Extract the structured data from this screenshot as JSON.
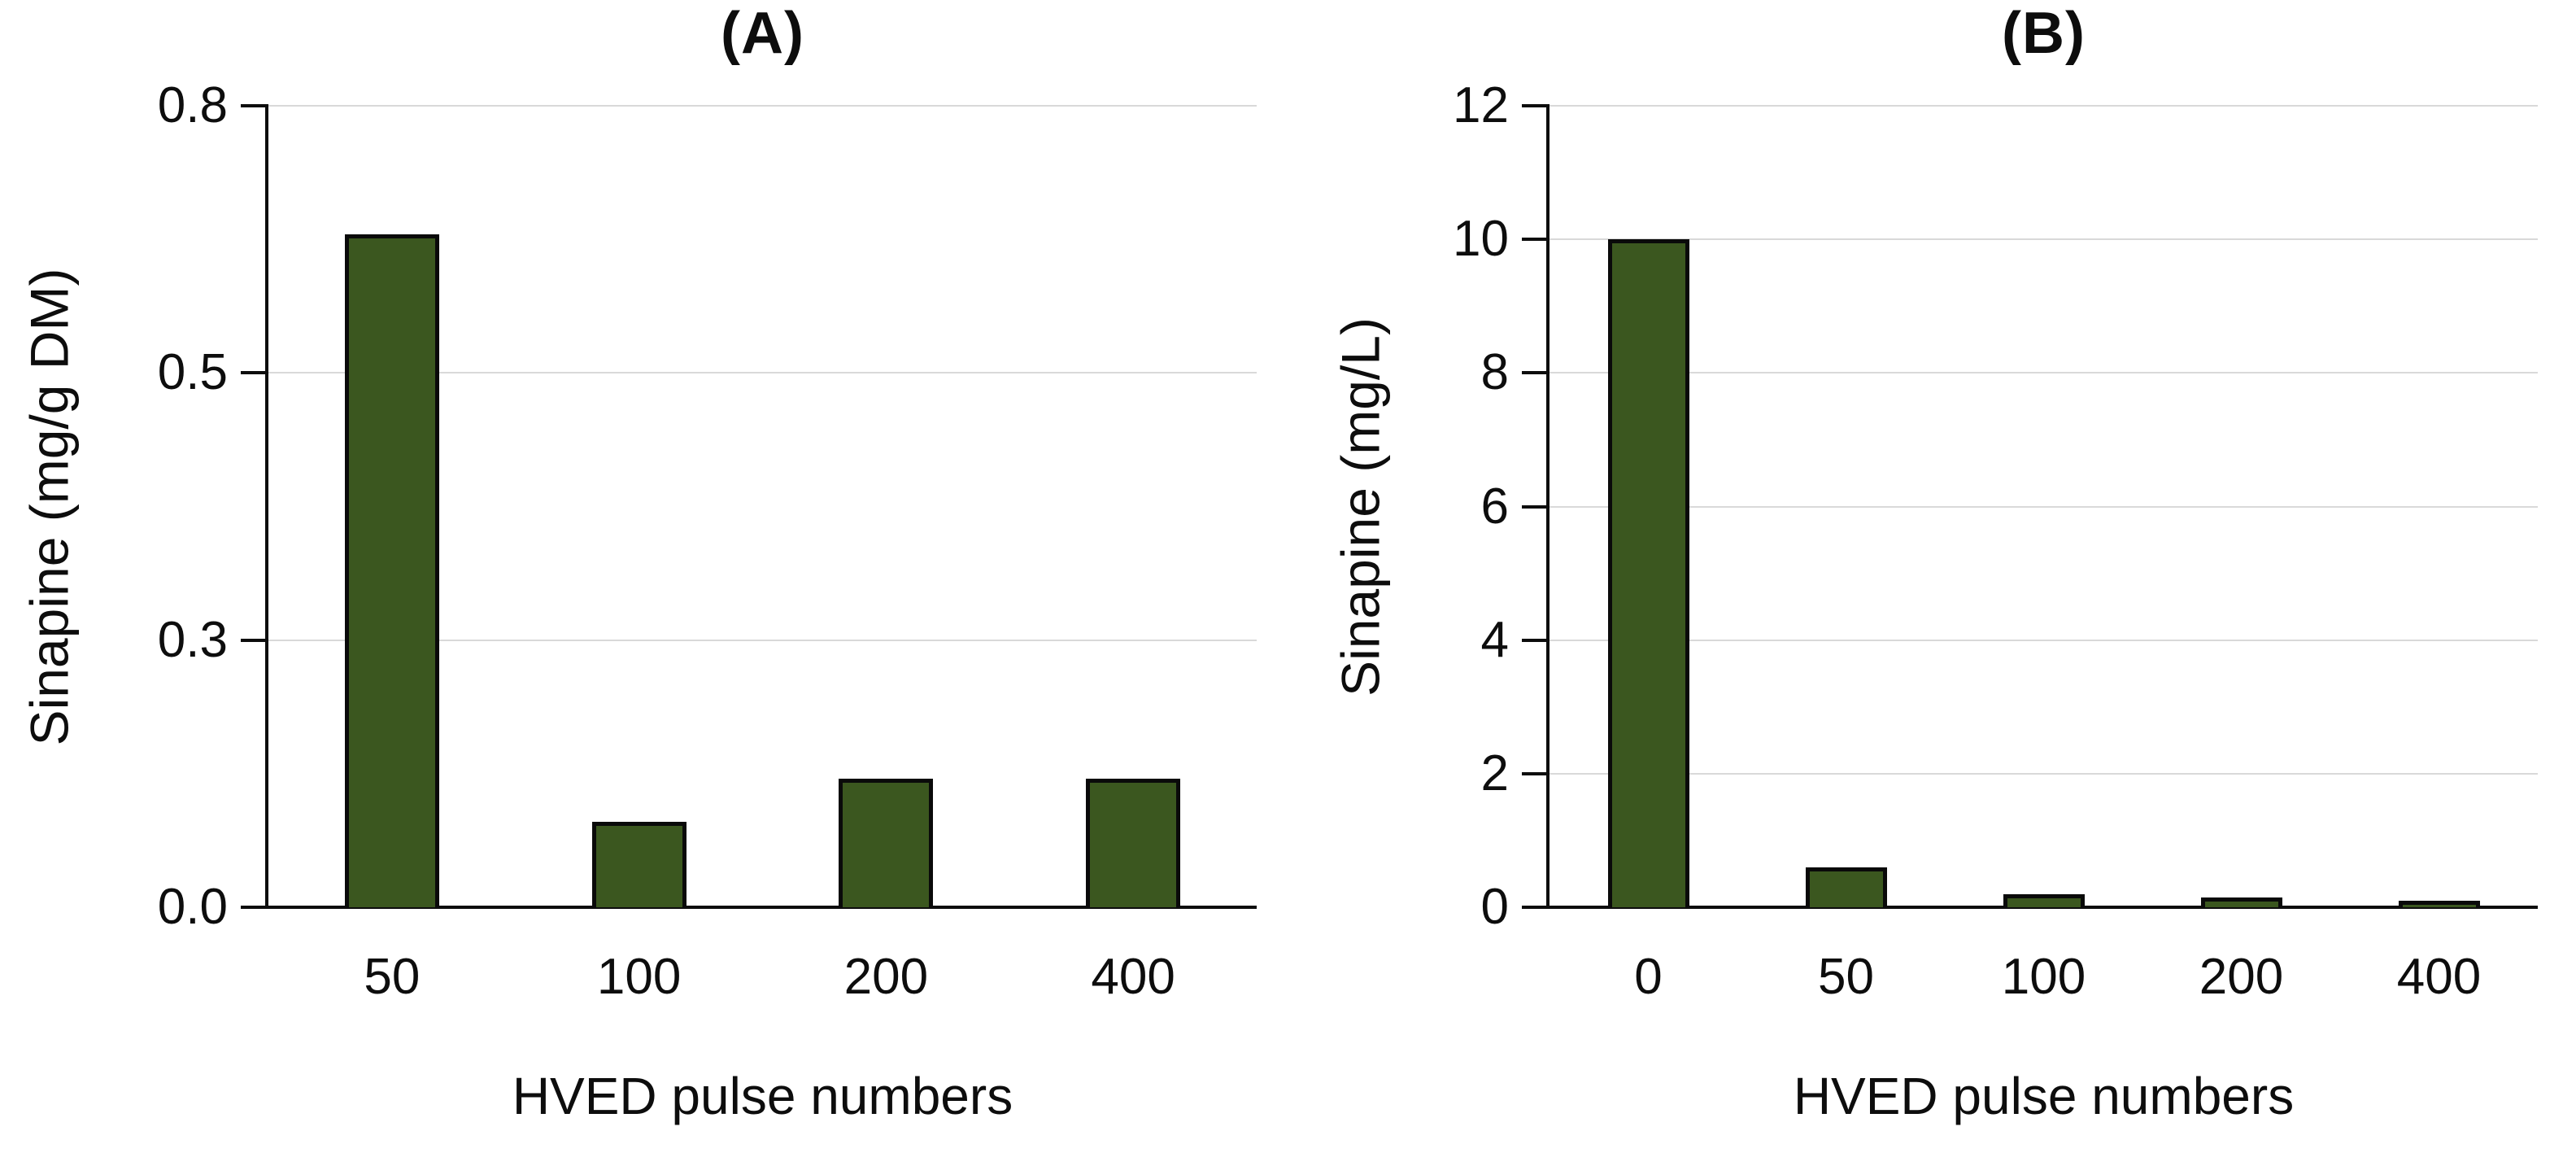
{
  "figure": {
    "background": "#ffffff",
    "text_color": "#0d0d0d"
  },
  "chart_data": [
    {
      "type": "bar",
      "title": "(A)",
      "ylabel": "Sinapine (mg/g DM)",
      "xlabel": "HVED pulse numbers",
      "categories": [
        "50",
        "100",
        "200",
        "400"
      ],
      "values": [
        0.63,
        0.08,
        0.12,
        0.12
      ],
      "ymax": 0.75,
      "ylim": [
        0,
        0.75
      ],
      "yticks": [
        {
          "v": 0,
          "label": "0.0"
        },
        {
          "v": 0.25,
          "label": "0.3"
        },
        {
          "v": 0.5,
          "label": "0.5"
        },
        {
          "v": 0.75,
          "label": "0.8"
        }
      ],
      "grid": true,
      "legend": false,
      "bar_color": "#3b571f",
      "bar_border": "#0a0a0a",
      "gridline_color": "#d9d9d9",
      "axis_color": "#0d0d0d"
    },
    {
      "type": "bar",
      "title": "(B)",
      "ylabel": "Sinapine (mg/L)",
      "xlabel": "HVED pulse numbers",
      "categories": [
        "0",
        "50",
        "100",
        "200",
        "400"
      ],
      "values": [
        10.0,
        0.6,
        0.2,
        0.15,
        0.1
      ],
      "ymax": 12,
      "ylim": [
        0,
        12
      ],
      "yticks": [
        {
          "v": 0,
          "label": "0"
        },
        {
          "v": 2,
          "label": "2"
        },
        {
          "v": 4,
          "label": "4"
        },
        {
          "v": 6,
          "label": "6"
        },
        {
          "v": 8,
          "label": "8"
        },
        {
          "v": 10,
          "label": "10"
        },
        {
          "v": 12,
          "label": "12"
        }
      ],
      "grid": true,
      "legend": false,
      "bar_color": "#3b571f",
      "bar_border": "#0a0a0a",
      "gridline_color": "#d9d9d9",
      "axis_color": "#0d0d0d"
    }
  ]
}
